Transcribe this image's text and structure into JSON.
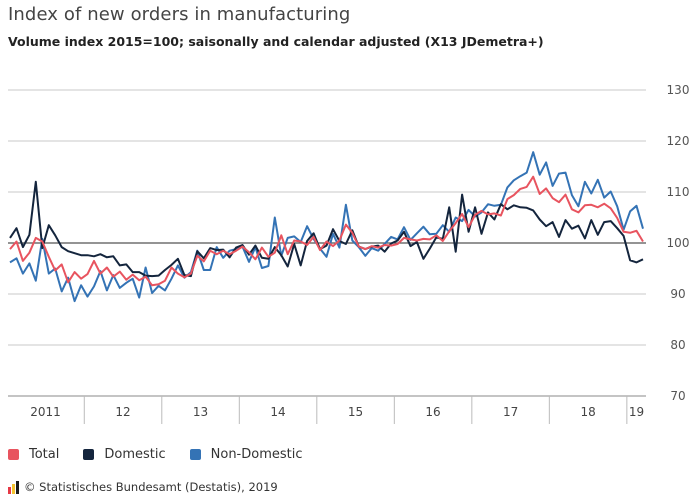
{
  "header": {
    "title": "Index of new orders in manufacturing",
    "subtitle": "Volume index 2015=100; saisonally and calendar adjusted (X13 JDemetra+)"
  },
  "footer": {
    "source": "© Statistisches Bundesamt (Destatis), 2019",
    "logo_colors": [
      "#e63946",
      "#f4c430",
      "#1a1a1a"
    ]
  },
  "chart_data": {
    "type": "line",
    "title": "Index of new orders in manufacturing",
    "subtitle": "Volume index 2015=100; saisonally and calendar adjusted (X13 JDemetra+)",
    "xlabel": "",
    "ylabel": "",
    "ylim": [
      70,
      130
    ],
    "yticks": [
      70,
      80,
      90,
      100,
      110,
      120,
      130
    ],
    "reference_line": 100,
    "grid": true,
    "legend_position": "bottom-left",
    "x_labels": [
      "2011",
      "12",
      "13",
      "14",
      "15",
      "16",
      "17",
      "18",
      "19"
    ],
    "period": "monthly, Jan 2011 - Mar 2019",
    "series": [
      {
        "name": "Total",
        "color": "#e8545f",
        "values": [
          98.8,
          100.3,
          96.5,
          98.1,
          101.0,
          100.3,
          97.3,
          94.6,
          95.8,
          92.3,
          94.3,
          93.0,
          93.9,
          96.5,
          94.0,
          95.2,
          93.4,
          94.4,
          92.8,
          93.8,
          92.7,
          93.4,
          91.7,
          91.9,
          92.6,
          95.2,
          94.0,
          93.3,
          94.0,
          97.5,
          96.4,
          98.5,
          97.8,
          98.5,
          97.8,
          98.5,
          99.3,
          98.2,
          96.8,
          99.1,
          97.3,
          98.1,
          101.5,
          97.8,
          100.5,
          100.3,
          99.6,
          101.2,
          98.6,
          100.3,
          99.4,
          100.5,
          103.6,
          102.0,
          99.3,
          98.8,
          99.4,
          99.1,
          99.6,
          99.5,
          99.8,
          101.0,
          100.7,
          100.5,
          100.8,
          100.7,
          101.5,
          100.4,
          102.3,
          103.9,
          105.7,
          103.1,
          105.5,
          106.3,
          105.6,
          105.8,
          105.4,
          108.6,
          109.4,
          110.6,
          111.0,
          113.0,
          109.6,
          110.7,
          108.8,
          108.0,
          109.5,
          106.6,
          106.0,
          107.4,
          107.5,
          107.0,
          107.7,
          106.8,
          104.9,
          102.2,
          102.0,
          102.4,
          100.3
        ]
      },
      {
        "name": "Domestic",
        "color": "#14253d",
        "values": [
          101.0,
          102.9,
          99.2,
          101.6,
          112.0,
          99.0,
          103.5,
          101.5,
          99.2,
          98.4,
          98.0,
          97.6,
          97.6,
          97.4,
          97.8,
          97.2,
          97.4,
          95.6,
          95.8,
          94.3,
          94.3,
          93.6,
          93.5,
          93.6,
          94.7,
          95.7,
          96.9,
          93.7,
          93.5,
          98.4,
          97.0,
          99.0,
          98.6,
          98.7,
          97.2,
          99.1,
          99.6,
          97.7,
          99.5,
          97.1,
          96.9,
          99.2,
          97.6,
          95.4,
          99.8,
          95.6,
          100.4,
          101.9,
          98.8,
          99.5,
          102.7,
          100.4,
          99.8,
          102.5,
          99.3,
          98.8,
          99.3,
          99.5,
          98.3,
          99.9,
          100.5,
          102.2,
          99.4,
          100.2,
          96.9,
          98.9,
          101.1,
          100.8,
          107.0,
          98.3,
          109.5,
          102.2,
          107.0,
          101.8,
          106.0,
          104.6,
          107.6,
          106.6,
          107.4,
          107.0,
          106.9,
          106.4,
          104.6,
          103.3,
          104.1,
          101.2,
          104.5,
          102.8,
          103.4,
          100.9,
          104.5,
          101.6,
          104.1,
          104.3,
          102.9,
          101.4,
          96.6,
          96.2,
          96.8
        ]
      },
      {
        "name": "Non-Domestic",
        "color": "#3473b5",
        "values": [
          96.2,
          97.0,
          94.0,
          96.0,
          92.6,
          100.8,
          94.0,
          95.0,
          90.5,
          93.2,
          88.6,
          91.7,
          89.5,
          91.5,
          94.5,
          90.7,
          93.7,
          91.2,
          92.2,
          93.0,
          89.3,
          95.2,
          90.2,
          91.6,
          90.7,
          93.0,
          95.6,
          93.2,
          94.3,
          98.5,
          94.7,
          94.7,
          99.2,
          97.1,
          98.5,
          98.8,
          99.3,
          96.3,
          99.2,
          95.1,
          95.5,
          105.0,
          97.5,
          101.0,
          101.3,
          100.2,
          103.3,
          100.8,
          98.9,
          97.3,
          101.8,
          99.1,
          107.5,
          100.5,
          99.2,
          97.5,
          99.0,
          98.5,
          99.8,
          101.2,
          100.7,
          103.1,
          100.6,
          101.9,
          103.2,
          101.7,
          101.8,
          103.5,
          102.2,
          105.0,
          104.3,
          106.5,
          105.2,
          106.0,
          107.6,
          107.3,
          107.5,
          110.9,
          112.3,
          113.1,
          113.8,
          117.8,
          113.4,
          115.8,
          111.2,
          113.6,
          113.8,
          109.4,
          107.2,
          112.0,
          109.7,
          112.4,
          108.9,
          110.1,
          107.2,
          102.6,
          106.2,
          107.3,
          102.8
        ]
      }
    ]
  }
}
